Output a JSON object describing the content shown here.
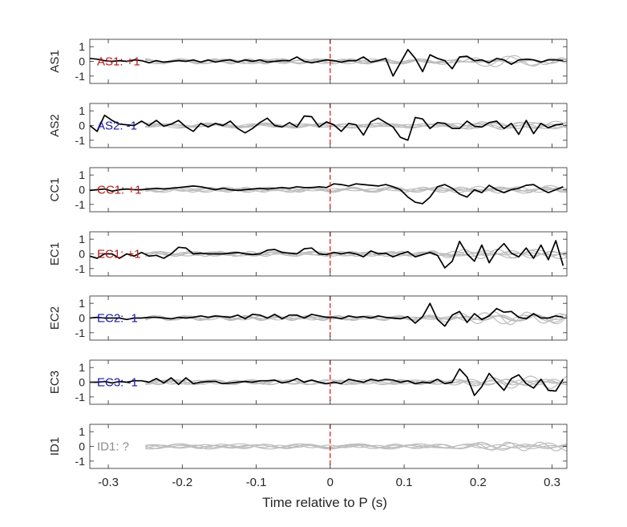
{
  "chart_data": {
    "type": "line",
    "xlabel": "Time relative to P (s)",
    "xlim": [
      -0.325,
      0.32
    ],
    "ylim": [
      -1.5,
      1.5
    ],
    "x_ticks": [
      -0.3,
      -0.2,
      -0.1,
      0,
      0.1,
      0.2,
      0.3
    ],
    "x_tick_labels": [
      "-0.3",
      "-0.2",
      "-0.1",
      "0",
      "0.1",
      "0.2",
      "0.3"
    ],
    "y_ticks": [
      1,
      0,
      -1
    ],
    "y_tick_labels": [
      "1",
      "0",
      "-1"
    ],
    "p_arrival_x": 0,
    "colors": {
      "positive": "#b51a1a",
      "negative": "#1a1aa8",
      "unknown": "#8c8c8c",
      "trace": "#000000",
      "other_traces": "#bdbdbd",
      "p_line": "#e32020"
    },
    "panels": [
      {
        "station": "AS1",
        "annotation": "AS1: +1",
        "polarity_color": "positive",
        "x_start": -0.325,
        "dt": 0.01,
        "values": [
          0.2,
          0.15,
          0.05,
          0.0,
          0.05,
          0.0,
          0.1,
          0.05,
          -0.1,
          0.05,
          -0.05,
          0.0,
          0.05,
          0.0,
          0.1,
          -0.05,
          0.1,
          -0.05,
          0.05,
          0.1,
          -0.05,
          0.1,
          0.0,
          0.1,
          -0.05,
          0.0,
          0.05,
          0.05,
          0.3,
          0.0,
          -0.1,
          0.0,
          0.1,
          0.05,
          -0.05,
          0.05,
          0.05,
          0.3,
          -0.05,
          0.05,
          0.2,
          -1.0,
          -0.1,
          0.8,
          0.2,
          -0.7,
          0.45,
          0.2,
          0.05,
          -0.5,
          0.3,
          0.35,
          0.05,
          0.1,
          -0.1,
          0.2,
          0.1,
          -0.2,
          0.1,
          0.15,
          0.1,
          -0.05,
          0.1,
          0.1,
          0.05,
          0.1,
          0.15,
          0.1
        ]
      },
      {
        "station": "AS2",
        "annotation": "AS2: -1",
        "polarity_color": "negative",
        "x_start": -0.325,
        "dt": 0.01,
        "values": [
          0.0,
          -0.4,
          0.7,
          0.35,
          0.1,
          0.05,
          0.0,
          0.3,
          0.0,
          0.35,
          -0.05,
          0.1,
          0.35,
          -0.1,
          -0.4,
          0.15,
          -0.1,
          0.15,
          0.0,
          0.3,
          -0.2,
          -0.5,
          -0.2,
          0.2,
          0.5,
          0.0,
          -0.1,
          0.2,
          -0.1,
          0.65,
          0.6,
          -0.1,
          0.25,
          0.05,
          -0.4,
          0.15,
          0.05,
          -0.65,
          0.25,
          0.5,
          0.2,
          -0.1,
          -0.8,
          -1.0,
          0.55,
          0.45,
          -0.2,
          0.2,
          0.15,
          -0.2,
          -0.2,
          0.3,
          -0.05,
          -0.1,
          0.2,
          0.3,
          -0.2,
          0.15,
          -0.6,
          0.35,
          -0.55,
          0.15,
          -0.15,
          0.05,
          0.1,
          0.35,
          -0.45,
          -0.5,
          0.1,
          0.15,
          -0.45,
          0.25,
          -0.2,
          -0.55
        ]
      },
      {
        "station": "CC1",
        "annotation": "CC1: +1",
        "polarity_color": "positive",
        "x_start": -0.325,
        "dt": 0.01,
        "values": [
          -0.05,
          0.0,
          0.05,
          -0.1,
          0.0,
          0.05,
          0.0,
          0.0,
          0.05,
          0.1,
          0.05,
          0.1,
          0.15,
          0.2,
          0.25,
          0.2,
          0.1,
          0.0,
          0.1,
          0.0,
          -0.05,
          0.0,
          0.05,
          0.1,
          0.05,
          0.1,
          0.15,
          0.1,
          0.2,
          0.15,
          0.15,
          0.2,
          0.15,
          0.4,
          0.35,
          0.25,
          0.4,
          0.35,
          0.3,
          0.25,
          0.35,
          0.2,
          0.0,
          -0.5,
          -0.85,
          -0.95,
          -0.5,
          0.2,
          0.35,
          0.1,
          -0.3,
          -0.5,
          0.0,
          -0.2,
          0.3,
          0.0,
          -0.2,
          0.0,
          0.1,
          0.3,
          0.35,
          0.05,
          -0.2,
          0.0,
          0.2,
          0.35,
          0.2,
          0.0,
          0.15,
          0.25,
          0.55,
          0.3,
          0.05,
          -0.2,
          -0.4
        ]
      },
      {
        "station": "EC1",
        "annotation": "EC1: +1",
        "polarity_color": "positive",
        "x_start": -0.325,
        "dt": 0.01,
        "values": [
          -0.15,
          -0.3,
          0.0,
          0.0,
          -0.3,
          0.0,
          -0.15,
          0.1,
          -0.15,
          -0.1,
          -0.3,
          0.0,
          0.45,
          0.4,
          0.0,
          0.05,
          0.0,
          0.0,
          0.0,
          0.05,
          0.1,
          0.0,
          -0.05,
          0.0,
          0.25,
          0.3,
          0.1,
          0.05,
          0.0,
          0.35,
          0.4,
          0.0,
          -0.05,
          0.1,
          0.0,
          0.1,
          0.0,
          -0.2,
          0.2,
          0.0,
          0.05,
          -0.2,
          0.0,
          0.15,
          -0.2,
          -0.05,
          0.1,
          -0.1,
          -0.95,
          -0.5,
          0.85,
          0.0,
          -0.5,
          0.6,
          -0.6,
          0.2,
          0.7,
          0.05,
          -0.2,
          0.4,
          -0.3,
          0.6,
          -0.4,
          0.9,
          -0.8,
          0.95,
          -0.7,
          0.5,
          0.0,
          -0.45,
          0.2,
          0.4,
          -0.3,
          0.5,
          0.5,
          0.5
        ]
      },
      {
        "station": "EC2",
        "annotation": "EC2: -1",
        "polarity_color": "negative",
        "x_start": -0.325,
        "dt": 0.01,
        "values": [
          0.0,
          0.05,
          0.0,
          0.0,
          0.0,
          -0.1,
          0.0,
          0.0,
          0.05,
          0.05,
          0.0,
          -0.05,
          0.05,
          0.0,
          0.05,
          0.15,
          0.05,
          0.15,
          0.1,
          0.05,
          0.2,
          -0.05,
          0.25,
          0.2,
          0.0,
          0.25,
          -0.05,
          0.2,
          0.2,
          0.0,
          0.25,
          0.15,
          0.05,
          0.05,
          -0.05,
          0.15,
          0.05,
          0.1,
          0.0,
          0.15,
          0.05,
          0.0,
          -0.05,
          0.1,
          -0.35,
          0.1,
          1.0,
          -0.1,
          -0.55,
          0.2,
          0.45,
          -0.3,
          0.3,
          -0.1,
          0.15,
          0.65,
          0.4,
          0.45,
          0.05,
          -0.05,
          0.3,
          0.0,
          0.0,
          0.15,
          0.05,
          0.0,
          -0.5,
          -0.55,
          0.85,
          -0.45,
          0.5,
          -0.85,
          0.65,
          0.1,
          -0.2,
          0.3,
          -0.4,
          0.0,
          0.3
        ]
      },
      {
        "station": "EC3",
        "annotation": "EC3: -1",
        "polarity_color": "negative",
        "x_start": -0.325,
        "dt": 0.01,
        "values": [
          0.0,
          0.0,
          0.05,
          -0.05,
          0.05,
          0.0,
          0.1,
          0.1,
          0.0,
          0.25,
          -0.05,
          0.3,
          -0.15,
          0.3,
          -0.1,
          0.0,
          0.05,
          0.05,
          -0.1,
          -0.05,
          0.0,
          0.05,
          0.0,
          0.1,
          0.1,
          0.15,
          -0.05,
          0.05,
          0.25,
          0.0,
          0.15,
          0.0,
          -0.1,
          0.0,
          -0.1,
          0.2,
          0.1,
          0.0,
          0.2,
          0.1,
          0.2,
          0.15,
          0.0,
          0.1,
          -0.1,
          0.0,
          -0.05,
          0.2,
          -0.1,
          0.0,
          0.9,
          0.35,
          -0.9,
          -0.3,
          0.6,
          0.0,
          -0.55,
          0.25,
          0.5,
          -0.1,
          -0.4,
          0.2,
          -0.55,
          -0.6,
          0.2,
          0.5,
          0.1,
          -0.3,
          0.4,
          -0.3,
          -0.4,
          0.4,
          0.2,
          -0.9,
          -0.3,
          0.95,
          0.4,
          -0.45
        ]
      },
      {
        "station": "ID1",
        "annotation": "ID1: ?",
        "polarity_color": "unknown",
        "x_start": -0.325,
        "dt": 0.01,
        "values": []
      }
    ]
  }
}
